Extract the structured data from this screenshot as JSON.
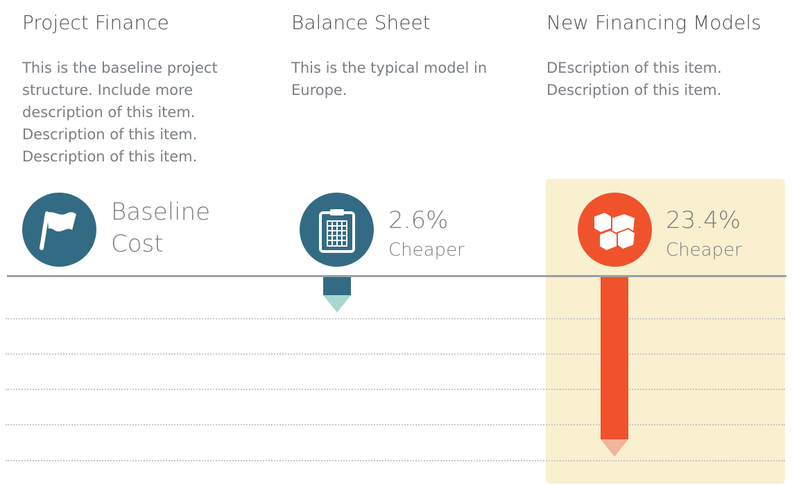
{
  "colors": {
    "teal": "#336b84",
    "orange": "#f0522c",
    "teal_tip": "#a8d7d0",
    "orange_tip": "#f3b39c",
    "highlight_bg": "#f8f0cf",
    "text": "#7a7f85"
  },
  "columns": [
    {
      "title": "Project Finance",
      "description": "This is the baseline project structure. Include more description of this item. Description of this item. Description of this item.",
      "icon": "flag-icon",
      "stat_line1": "Baseline",
      "stat_line2": "Cost"
    },
    {
      "title": "Balance Sheet",
      "description": "This is the typical model in Europe.",
      "icon": "clipboard-icon",
      "stat_line1": "2.6%",
      "stat_line2": "Cheaper"
    },
    {
      "title": "New Financing Models",
      "description": "DEscription of this item. Description of this item.",
      "icon": "cubes-icon",
      "stat_line1": "23.4%",
      "stat_line2": "Cheaper"
    }
  ],
  "chart_data": {
    "type": "bar",
    "orientation": "downward from baseline",
    "categories": [
      "Project Finance",
      "Balance Sheet",
      "New Financing Models"
    ],
    "values": [
      0,
      2.6,
      23.4
    ],
    "unit": "% cheaper than baseline",
    "ylim": [
      0,
      25
    ],
    "grid": true,
    "highlighted_category": "New Financing Models"
  }
}
